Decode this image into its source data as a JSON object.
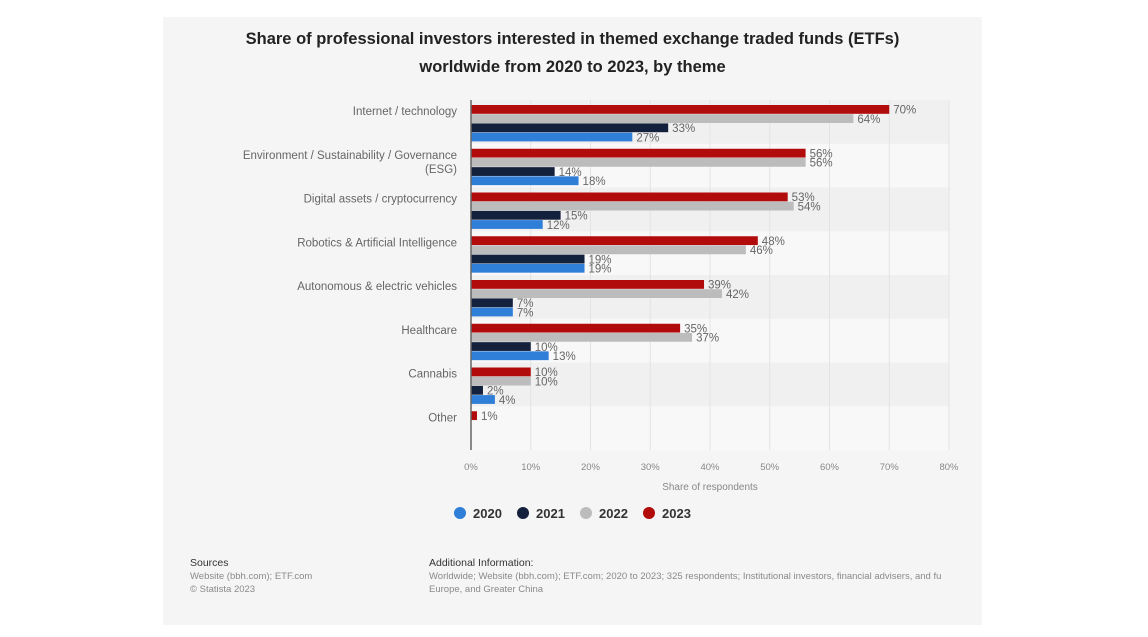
{
  "chart_data": {
    "type": "bar",
    "orientation": "horizontal",
    "title": "Share of professional investors interested in themed exchange traded funds (ETFs) worldwide from 2020 to 2023, by theme",
    "title_lines": [
      "Share of professional investors interested in themed exchange traded funds (ETFs)",
      "worldwide from 2020 to 2023, by theme"
    ],
    "categories": [
      "Internet / technology",
      "Environment / Sustainability / Governance (ESG)",
      "Digital assets / cryptocurrency",
      "Robotics & Artificial Intelligence",
      "Autonomous & electric vehicles",
      "Healthcare",
      "Cannabis",
      "Other"
    ],
    "category_label_lines": [
      [
        "Internet / technology"
      ],
      [
        "Environment / Sustainability / Governance",
        "(ESG)"
      ],
      [
        "Digital assets / cryptocurrency"
      ],
      [
        "Robotics & Artificial Intelligence"
      ],
      [
        "Autonomous & electric vehicles"
      ],
      [
        "Healthcare"
      ],
      [
        "Cannabis"
      ],
      [
        "Other"
      ]
    ],
    "series": [
      {
        "name": "2023",
        "color": "#b20b0b",
        "values": [
          70,
          56,
          53,
          48,
          39,
          35,
          10,
          1
        ]
      },
      {
        "name": "2022",
        "color": "#bcbcbc",
        "values": [
          64,
          56,
          54,
          46,
          42,
          37,
          10,
          null
        ]
      },
      {
        "name": "2021",
        "color": "#14213d",
        "values": [
          33,
          14,
          15,
          19,
          7,
          10,
          2,
          null
        ]
      },
      {
        "name": "2020",
        "color": "#2f7ed8",
        "values": [
          27,
          18,
          12,
          19,
          7,
          13,
          4,
          null
        ]
      }
    ],
    "legend": {
      "placement": "bottom",
      "order": [
        "2020",
        "2021",
        "2022",
        "2023"
      ]
    },
    "xlabel": "Share of respondents",
    "ylabel": "",
    "xlim": [
      0,
      80
    ],
    "xticks": [
      0,
      10,
      20,
      30,
      40,
      50,
      60,
      70,
      80
    ],
    "xtick_labels": [
      "0%",
      "10%",
      "20%",
      "30%",
      "40%",
      "50%",
      "60%",
      "70%",
      "80%"
    ],
    "value_suffix": "%",
    "grid": true
  },
  "footer": {
    "sources_heading": "Sources",
    "sources_lines": [
      "Website (bbh.com); ETF.com",
      "© Statista 2023"
    ],
    "additional_heading": "Additional Information:",
    "additional_lines": [
      "Worldwide; Website (bbh.com); ETF.com; 2020 to 2023; 325 respondents; Institutional investors, financial advisers, and fu",
      "Europe, and Greater China"
    ]
  }
}
